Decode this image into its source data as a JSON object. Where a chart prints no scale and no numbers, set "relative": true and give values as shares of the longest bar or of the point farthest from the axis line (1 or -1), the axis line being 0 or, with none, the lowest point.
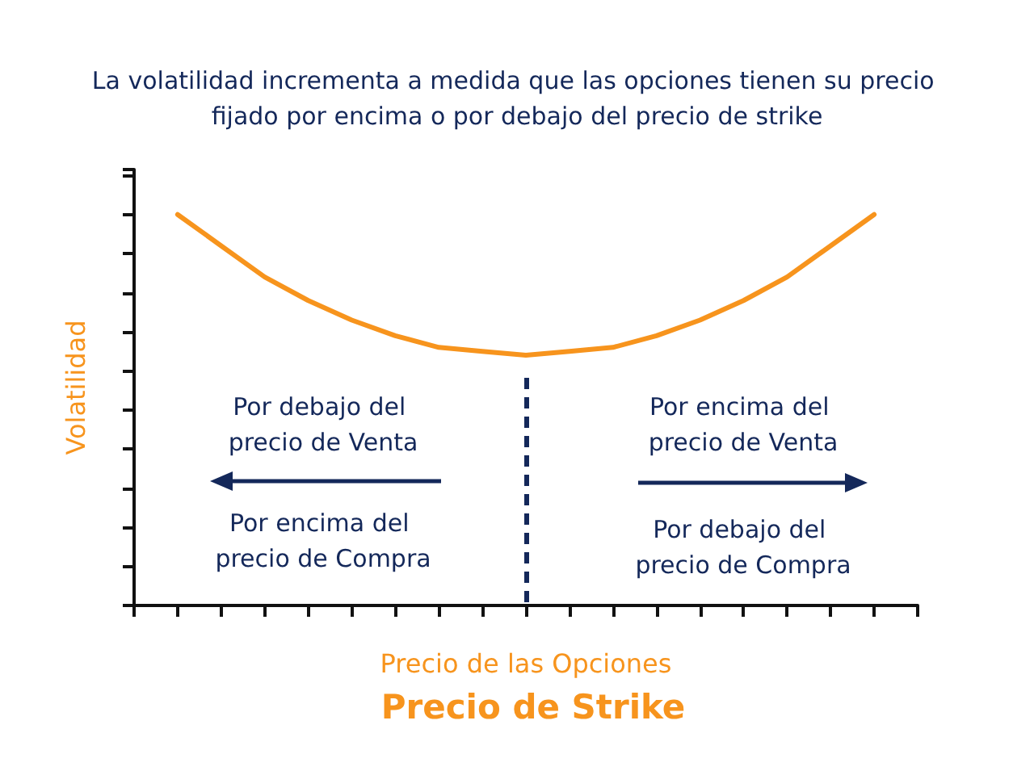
{
  "chart_data": {
    "type": "line",
    "title": "La volatilidad incrementa a medida que las opciones tienen su precio fijado por encima o por debajo del precio de strike",
    "xlabel": "Precio de las Opciones",
    "ylabel": "Volatilidad",
    "relative": true,
    "marker": "none",
    "categories": [
      null,
      null,
      null,
      null,
      null,
      null,
      null,
      null,
      null,
      null,
      null,
      null,
      null,
      null,
      null,
      null,
      null,
      null,
      null
    ],
    "series": [
      {
        "color": "#f7941d",
        "line_style": "solid",
        "values": [
          null,
          1.0,
          0.92,
          0.84,
          0.78,
          0.73,
          0.69,
          0.66,
          0.65,
          0.64,
          0.65,
          0.66,
          0.69,
          0.73,
          0.78,
          0.84,
          0.92,
          1.0,
          null
        ]
      }
    ],
    "annotations": [
      "Por debajo del precio de Venta",
      "Por encima del precio de Compra",
      "Por encima del precio de Venta",
      "Por debajo del precio de Compra",
      "Precio de Strike"
    ]
  }
}
